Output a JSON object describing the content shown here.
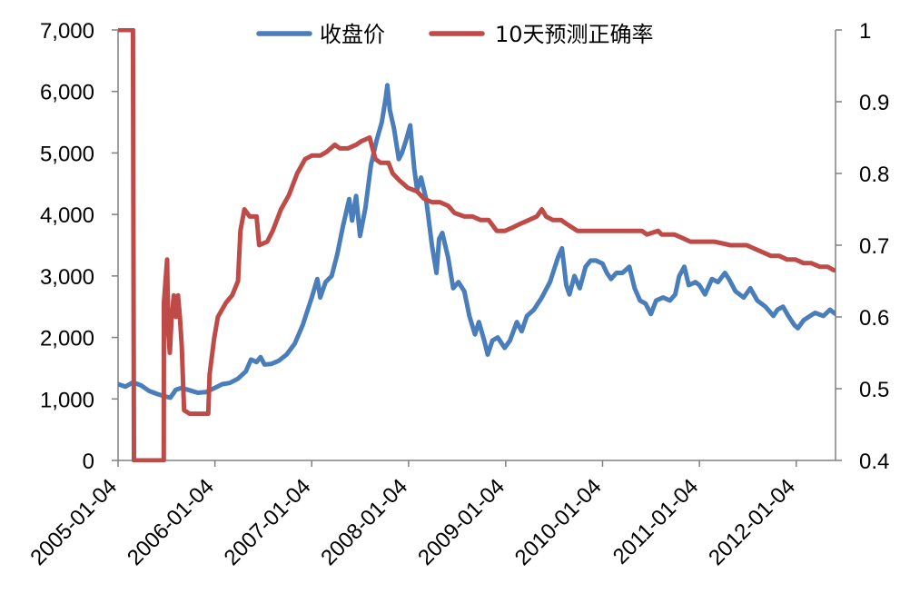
{
  "chart_data": {
    "type": "line",
    "title": "",
    "xlabel": "",
    "ylabel": "",
    "grid": false,
    "legend_position": "top",
    "x_axis": {
      "type": "date",
      "min": "2005-01-04",
      "max": "2012-05-31",
      "ticks": [
        "2005-01-04",
        "2006-01-04",
        "2007-01-04",
        "2008-01-04",
        "2009-01-04",
        "2010-01-04",
        "2011-01-04",
        "2012-01-04"
      ]
    },
    "y_left": {
      "range": [
        0,
        7000
      ],
      "ticks": [
        0,
        1000,
        2000,
        3000,
        4000,
        5000,
        6000,
        7000
      ],
      "tick_labels": [
        "0",
        "1,000",
        "2,000",
        "3,000",
        "4,000",
        "5,000",
        "6,000",
        "7,000"
      ]
    },
    "y_right": {
      "range": [
        0.4,
        1
      ],
      "ticks": [
        0.4,
        0.5,
        0.6,
        0.7,
        0.8,
        0.9,
        1
      ],
      "tick_labels": [
        "0.4",
        "0.5",
        "0.6",
        "0.7",
        "0.8",
        "0.9",
        "1"
      ]
    },
    "series": [
      {
        "name": "收盘价",
        "axis": "left",
        "color": "#4a7ebb",
        "points": [
          [
            "2005-01-04",
            1240
          ],
          [
            "2005-02-01",
            1200
          ],
          [
            "2005-03-01",
            1270
          ],
          [
            "2005-04-01",
            1220
          ],
          [
            "2005-05-01",
            1130
          ],
          [
            "2005-06-01",
            1080
          ],
          [
            "2005-07-01",
            1040
          ],
          [
            "2005-07-20",
            1020
          ],
          [
            "2005-08-10",
            1150
          ],
          [
            "2005-09-01",
            1180
          ],
          [
            "2005-10-01",
            1140
          ],
          [
            "2005-11-01",
            1100
          ],
          [
            "2005-12-01",
            1110
          ],
          [
            "2006-01-04",
            1180
          ],
          [
            "2006-02-01",
            1240
          ],
          [
            "2006-03-01",
            1260
          ],
          [
            "2006-04-01",
            1330
          ],
          [
            "2006-05-01",
            1450
          ],
          [
            "2006-05-20",
            1640
          ],
          [
            "2006-06-10",
            1600
          ],
          [
            "2006-06-25",
            1680
          ],
          [
            "2006-07-10",
            1560
          ],
          [
            "2006-08-05",
            1570
          ],
          [
            "2006-09-01",
            1620
          ],
          [
            "2006-10-01",
            1720
          ],
          [
            "2006-11-01",
            1900
          ],
          [
            "2006-12-01",
            2200
          ],
          [
            "2007-01-04",
            2650
          ],
          [
            "2007-01-25",
            2950
          ],
          [
            "2007-02-05",
            2650
          ],
          [
            "2007-02-25",
            2900
          ],
          [
            "2007-03-20",
            3000
          ],
          [
            "2007-04-10",
            3350
          ],
          [
            "2007-05-01",
            3800
          ],
          [
            "2007-05-25",
            4250
          ],
          [
            "2007-06-05",
            3900
          ],
          [
            "2007-06-20",
            4300
          ],
          [
            "2007-07-05",
            3650
          ],
          [
            "2007-07-25",
            4100
          ],
          [
            "2007-08-15",
            4800
          ],
          [
            "2007-09-05",
            5200
          ],
          [
            "2007-09-25",
            5500
          ],
          [
            "2007-10-10",
            5900
          ],
          [
            "2007-10-16",
            6100
          ],
          [
            "2007-10-25",
            5700
          ],
          [
            "2007-11-10",
            5400
          ],
          [
            "2007-11-28",
            4900
          ],
          [
            "2007-12-10",
            5000
          ],
          [
            "2007-12-25",
            5200
          ],
          [
            "2008-01-10",
            5450
          ],
          [
            "2008-01-25",
            4750
          ],
          [
            "2008-02-05",
            4400
          ],
          [
            "2008-02-20",
            4600
          ],
          [
            "2008-03-10",
            4250
          ],
          [
            "2008-04-01",
            3500
          ],
          [
            "2008-04-18",
            3050
          ],
          [
            "2008-04-28",
            3600
          ],
          [
            "2008-05-10",
            3700
          ],
          [
            "2008-06-01",
            3300
          ],
          [
            "2008-06-20",
            2800
          ],
          [
            "2008-07-10",
            2900
          ],
          [
            "2008-08-01",
            2750
          ],
          [
            "2008-08-20",
            2350
          ],
          [
            "2008-09-10",
            2050
          ],
          [
            "2008-09-25",
            2250
          ],
          [
            "2008-10-15",
            1950
          ],
          [
            "2008-10-28",
            1720
          ],
          [
            "2008-11-15",
            1950
          ],
          [
            "2008-12-05",
            2000
          ],
          [
            "2008-12-31",
            1830
          ],
          [
            "2009-01-20",
            1950
          ],
          [
            "2009-02-15",
            2250
          ],
          [
            "2009-03-05",
            2100
          ],
          [
            "2009-03-25",
            2350
          ],
          [
            "2009-04-20",
            2450
          ],
          [
            "2009-05-20",
            2650
          ],
          [
            "2009-06-20",
            2900
          ],
          [
            "2009-07-20",
            3300
          ],
          [
            "2009-08-04",
            3450
          ],
          [
            "2009-08-20",
            2850
          ],
          [
            "2009-09-01",
            2700
          ],
          [
            "2009-09-20",
            3000
          ],
          [
            "2009-10-10",
            2800
          ],
          [
            "2009-11-01",
            3150
          ],
          [
            "2009-11-20",
            3250
          ],
          [
            "2009-12-10",
            3250
          ],
          [
            "2010-01-04",
            3200
          ],
          [
            "2010-01-20",
            3050
          ],
          [
            "2010-02-05",
            2950
          ],
          [
            "2010-02-25",
            3050
          ],
          [
            "2010-03-20",
            3050
          ],
          [
            "2010-04-15",
            3150
          ],
          [
            "2010-05-05",
            2800
          ],
          [
            "2010-05-25",
            2600
          ],
          [
            "2010-06-15",
            2550
          ],
          [
            "2010-07-05",
            2380
          ],
          [
            "2010-07-25",
            2600
          ],
          [
            "2010-08-20",
            2650
          ],
          [
            "2010-09-15",
            2600
          ],
          [
            "2010-10-05",
            2700
          ],
          [
            "2010-10-20",
            3000
          ],
          [
            "2010-11-08",
            3150
          ],
          [
            "2010-11-25",
            2850
          ],
          [
            "2010-12-20",
            2900
          ],
          [
            "2011-01-04",
            2850
          ],
          [
            "2011-01-25",
            2700
          ],
          [
            "2011-02-20",
            2950
          ],
          [
            "2011-03-15",
            2900
          ],
          [
            "2011-04-10",
            3050
          ],
          [
            "2011-04-25",
            2950
          ],
          [
            "2011-05-20",
            2750
          ],
          [
            "2011-06-20",
            2650
          ],
          [
            "2011-07-15",
            2800
          ],
          [
            "2011-08-10",
            2600
          ],
          [
            "2011-09-10",
            2500
          ],
          [
            "2011-10-10",
            2350
          ],
          [
            "2011-10-25",
            2450
          ],
          [
            "2011-11-15",
            2500
          ],
          [
            "2011-12-05",
            2350
          ],
          [
            "2011-12-28",
            2200
          ],
          [
            "2012-01-10",
            2150
          ],
          [
            "2012-02-01",
            2280
          ],
          [
            "2012-02-25",
            2350
          ],
          [
            "2012-03-15",
            2400
          ],
          [
            "2012-04-15",
            2350
          ],
          [
            "2012-05-10",
            2450
          ],
          [
            "2012-05-31",
            2380
          ]
        ]
      },
      {
        "name": "10天预测正确率",
        "axis": "right",
        "color": "#be4b48",
        "points": [
          [
            "2005-01-04",
            1.0
          ],
          [
            "2005-03-01",
            1.0
          ],
          [
            "2005-03-05",
            0.4
          ],
          [
            "2005-06-20",
            0.4
          ],
          [
            "2005-06-25",
            0.4
          ],
          [
            "2005-06-26",
            0.62
          ],
          [
            "2005-07-08",
            0.68
          ],
          [
            "2005-07-12",
            0.58
          ],
          [
            "2005-07-18",
            0.55
          ],
          [
            "2005-07-25",
            0.6
          ],
          [
            "2005-08-02",
            0.63
          ],
          [
            "2005-08-10",
            0.6
          ],
          [
            "2005-08-18",
            0.63
          ],
          [
            "2005-08-25",
            0.6
          ],
          [
            "2005-09-01",
            0.56
          ],
          [
            "2005-09-10",
            0.47
          ],
          [
            "2005-10-01",
            0.465
          ],
          [
            "2005-11-01",
            0.465
          ],
          [
            "2005-12-01",
            0.465
          ],
          [
            "2005-12-10",
            0.465
          ],
          [
            "2005-12-15",
            0.52
          ],
          [
            "2006-01-01",
            0.57
          ],
          [
            "2006-01-15",
            0.6
          ],
          [
            "2006-02-15",
            0.62
          ],
          [
            "2006-03-10",
            0.63
          ],
          [
            "2006-04-01",
            0.65
          ],
          [
            "2006-04-10",
            0.72
          ],
          [
            "2006-04-25",
            0.75
          ],
          [
            "2006-05-15",
            0.74
          ],
          [
            "2006-06-10",
            0.74
          ],
          [
            "2006-06-20",
            0.7
          ],
          [
            "2006-07-20",
            0.705
          ],
          [
            "2006-08-10",
            0.72
          ],
          [
            "2006-09-10",
            0.75
          ],
          [
            "2006-10-10",
            0.77
          ],
          [
            "2006-11-10",
            0.8
          ],
          [
            "2006-12-10",
            0.82
          ],
          [
            "2007-01-04",
            0.825
          ],
          [
            "2007-02-05",
            0.825
          ],
          [
            "2007-03-01",
            0.83
          ],
          [
            "2007-04-01",
            0.84
          ],
          [
            "2007-04-20",
            0.835
          ],
          [
            "2007-05-20",
            0.835
          ],
          [
            "2007-06-20",
            0.84
          ],
          [
            "2007-07-10",
            0.845
          ],
          [
            "2007-08-10",
            0.85
          ],
          [
            "2007-09-01",
            0.82
          ],
          [
            "2007-09-20",
            0.815
          ],
          [
            "2007-10-20",
            0.815
          ],
          [
            "2007-11-05",
            0.8
          ],
          [
            "2007-12-01",
            0.79
          ],
          [
            "2008-01-01",
            0.78
          ],
          [
            "2008-02-05",
            0.775
          ],
          [
            "2008-03-01",
            0.765
          ],
          [
            "2008-04-01",
            0.76
          ],
          [
            "2008-05-01",
            0.76
          ],
          [
            "2008-06-01",
            0.755
          ],
          [
            "2008-06-25",
            0.745
          ],
          [
            "2008-08-01",
            0.74
          ],
          [
            "2008-09-01",
            0.74
          ],
          [
            "2008-10-01",
            0.735
          ],
          [
            "2008-11-01",
            0.735
          ],
          [
            "2008-12-01",
            0.72
          ],
          [
            "2009-01-01",
            0.72
          ],
          [
            "2009-02-01",
            0.725
          ],
          [
            "2009-03-01",
            0.73
          ],
          [
            "2009-04-01",
            0.735
          ],
          [
            "2009-05-01",
            0.74
          ],
          [
            "2009-05-20",
            0.75
          ],
          [
            "2009-06-05",
            0.74
          ],
          [
            "2009-07-01",
            0.735
          ],
          [
            "2009-08-01",
            0.735
          ],
          [
            "2009-08-20",
            0.73
          ],
          [
            "2009-10-01",
            0.72
          ],
          [
            "2009-12-01",
            0.72
          ],
          [
            "2010-03-01",
            0.72
          ],
          [
            "2010-06-01",
            0.72
          ],
          [
            "2010-06-20",
            0.715
          ],
          [
            "2010-08-01",
            0.72
          ],
          [
            "2010-08-15",
            0.715
          ],
          [
            "2010-10-01",
            0.715
          ],
          [
            "2010-11-01",
            0.71
          ],
          [
            "2010-12-01",
            0.705
          ],
          [
            "2011-01-01",
            0.705
          ],
          [
            "2011-03-01",
            0.705
          ],
          [
            "2011-05-01",
            0.7
          ],
          [
            "2011-07-01",
            0.7
          ],
          [
            "2011-08-01",
            0.695
          ],
          [
            "2011-09-01",
            0.69
          ],
          [
            "2011-10-01",
            0.685
          ],
          [
            "2011-11-01",
            0.685
          ],
          [
            "2011-12-01",
            0.68
          ],
          [
            "2012-01-01",
            0.68
          ],
          [
            "2012-02-01",
            0.675
          ],
          [
            "2012-03-01",
            0.675
          ],
          [
            "2012-04-01",
            0.67
          ],
          [
            "2012-05-01",
            0.67
          ],
          [
            "2012-05-25",
            0.665
          ]
        ]
      }
    ]
  }
}
